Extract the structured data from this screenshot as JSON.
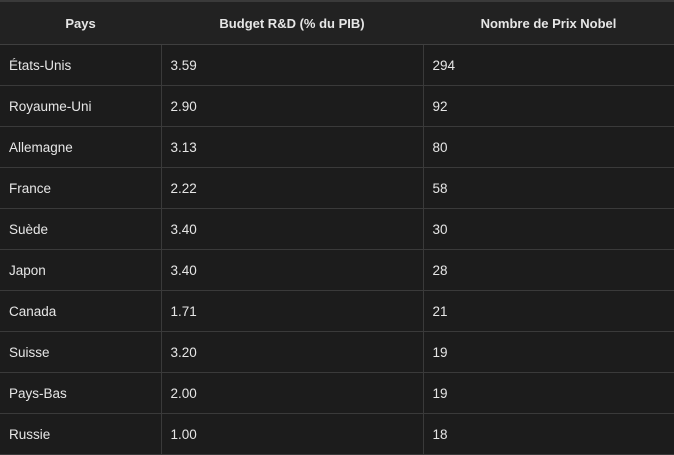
{
  "table": {
    "headers": [
      "Pays",
      "Budget R&D (% du PIB)",
      "Nombre de Prix Nobel"
    ],
    "rows": [
      [
        "États-Unis",
        "3.59",
        "294"
      ],
      [
        "Royaume-Uni",
        "2.90",
        "92"
      ],
      [
        "Allemagne",
        "3.13",
        "80"
      ],
      [
        "France",
        "2.22",
        "58"
      ],
      [
        "Suède",
        "3.40",
        "30"
      ],
      [
        "Japon",
        "3.40",
        "28"
      ],
      [
        "Canada",
        "1.71",
        "21"
      ],
      [
        "Suisse",
        "3.20",
        "19"
      ],
      [
        "Pays-Bas",
        "2.00",
        "19"
      ],
      [
        "Russie",
        "1.00",
        "18"
      ]
    ]
  }
}
